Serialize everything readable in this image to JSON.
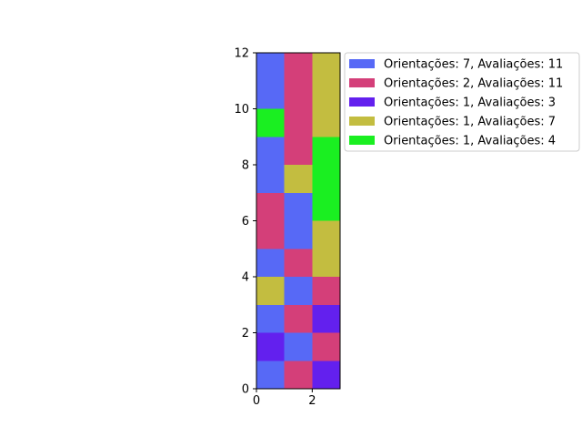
{
  "chart_data": {
    "type": "heatmap",
    "xlim": [
      0,
      3
    ],
    "ylim": [
      0,
      12
    ],
    "x_ticks": [
      "0",
      "2"
    ],
    "y_ticks": [
      "0",
      "2",
      "4",
      "6",
      "8",
      "10",
      "12"
    ],
    "x_tick_values": [
      0,
      2
    ],
    "y_tick_values": [
      0,
      2,
      4,
      6,
      8,
      10,
      12
    ],
    "legend_position": "right",
    "series": [
      {
        "name": "Orientações: 7, Avaliações: 11",
        "color": "#5769f6"
      },
      {
        "name": "Orientações: 2, Avaliações: 11",
        "color": "#d43f79"
      },
      {
        "name": "Orientações: 1, Avaliações: 3",
        "color": "#6320ee"
      },
      {
        "name": "Orientações: 1, Avaliações: 7",
        "color": "#c3bd40"
      },
      {
        "name": "Orientações: 1, Avaliações: 4",
        "color": "#1aef21"
      }
    ],
    "cells": [
      {
        "x": 0,
        "y": 0,
        "w": 1,
        "h": 1,
        "series": 0
      },
      {
        "x": 0,
        "y": 1,
        "w": 1,
        "h": 1,
        "series": 2
      },
      {
        "x": 0,
        "y": 2,
        "w": 1,
        "h": 1,
        "series": 0
      },
      {
        "x": 0,
        "y": 3,
        "w": 1,
        "h": 1,
        "series": 3
      },
      {
        "x": 0,
        "y": 4,
        "w": 1,
        "h": 1,
        "series": 0
      },
      {
        "x": 0,
        "y": 5,
        "w": 1,
        "h": 2,
        "series": 1
      },
      {
        "x": 0,
        "y": 7,
        "w": 1,
        "h": 2,
        "series": 0
      },
      {
        "x": 0,
        "y": 9,
        "w": 1,
        "h": 1,
        "series": 4
      },
      {
        "x": 0,
        "y": 10,
        "w": 1,
        "h": 2,
        "series": 0
      },
      {
        "x": 1,
        "y": 0,
        "w": 1,
        "h": 1,
        "series": 1
      },
      {
        "x": 1,
        "y": 1,
        "w": 1,
        "h": 1,
        "series": 0
      },
      {
        "x": 1,
        "y": 2,
        "w": 1,
        "h": 1,
        "series": 1
      },
      {
        "x": 1,
        "y": 3,
        "w": 1,
        "h": 1,
        "series": 0
      },
      {
        "x": 1,
        "y": 4,
        "w": 1,
        "h": 1,
        "series": 1
      },
      {
        "x": 1,
        "y": 5,
        "w": 1,
        "h": 2,
        "series": 0
      },
      {
        "x": 1,
        "y": 7,
        "w": 1,
        "h": 1,
        "series": 3
      },
      {
        "x": 1,
        "y": 8,
        "w": 1,
        "h": 4,
        "series": 1
      },
      {
        "x": 2,
        "y": 0,
        "w": 1,
        "h": 1,
        "series": 2
      },
      {
        "x": 2,
        "y": 1,
        "w": 1,
        "h": 1,
        "series": 1
      },
      {
        "x": 2,
        "y": 2,
        "w": 1,
        "h": 1,
        "series": 2
      },
      {
        "x": 2,
        "y": 3,
        "w": 1,
        "h": 1,
        "series": 1
      },
      {
        "x": 2,
        "y": 4,
        "w": 1,
        "h": 2,
        "series": 3
      },
      {
        "x": 2,
        "y": 6,
        "w": 1,
        "h": 3,
        "series": 4
      },
      {
        "x": 2,
        "y": 9,
        "w": 1,
        "h": 3,
        "series": 3
      }
    ]
  }
}
